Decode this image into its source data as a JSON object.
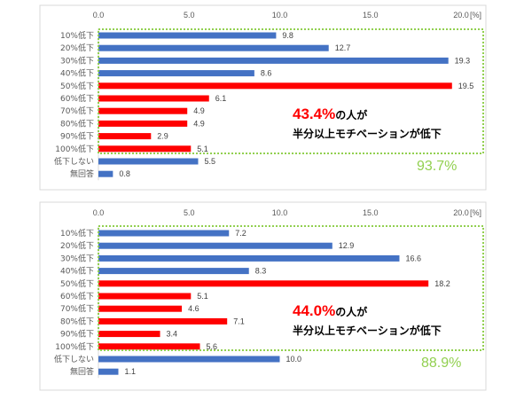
{
  "chart_data": [
    {
      "type": "bar",
      "orientation": "horizontal",
      "categories": [
        "10%低下",
        "20%低下",
        "30%低下",
        "40%低下",
        "50%低下",
        "60%低下",
        "70%低下",
        "80%低下",
        "90%低下",
        "100%低下",
        "低下しない",
        "無回答"
      ],
      "values": [
        9.8,
        12.7,
        19.3,
        8.6,
        19.5,
        6.1,
        4.9,
        4.9,
        2.9,
        5.1,
        5.5,
        0.8
      ],
      "value_labels": [
        "9.8",
        "12.7",
        "19.3",
        "8.6",
        "19.5",
        "6.1",
        "4.9",
        "4.9",
        "2.9",
        "5.1",
        "5.5",
        "0.8"
      ],
      "bar_colors": [
        "#4472c4",
        "#4472c4",
        "#4472c4",
        "#4472c4",
        "#ff0000",
        "#ff0000",
        "#ff0000",
        "#ff0000",
        "#ff0000",
        "#ff0000",
        "#4472c4",
        "#4472c4"
      ],
      "xlim": [
        0,
        20
      ],
      "x_ticks": [
        "0.0",
        "5.0",
        "10.0",
        "15.0",
        "20.0"
      ],
      "x_unit": "[%]",
      "grid": false,
      "annotation": {
        "highlight": "43.4%",
        "line1_rest": "の人が",
        "line2": "半分以上モチベーションが低下"
      },
      "bracket_total": "93.7%",
      "bracket_color": "#92d050"
    },
    {
      "type": "bar",
      "orientation": "horizontal",
      "categories": [
        "10%低下",
        "20%低下",
        "30%低下",
        "40%低下",
        "50%低下",
        "60%低下",
        "70%低下",
        "80%低下",
        "90%低下",
        "100%低下",
        "低下しない",
        "無回答"
      ],
      "values": [
        7.2,
        12.9,
        16.6,
        8.3,
        18.2,
        5.1,
        4.6,
        7.1,
        3.4,
        5.6,
        10.0,
        1.1
      ],
      "value_labels": [
        "7.2",
        "12.9",
        "16.6",
        "8.3",
        "18.2",
        "5.1",
        "4.6",
        "7.1",
        "3.4",
        "5.6",
        "10.0",
        "1.1"
      ],
      "bar_colors": [
        "#4472c4",
        "#4472c4",
        "#4472c4",
        "#4472c4",
        "#ff0000",
        "#ff0000",
        "#ff0000",
        "#ff0000",
        "#ff0000",
        "#ff0000",
        "#4472c4",
        "#4472c4"
      ],
      "xlim": [
        0,
        20
      ],
      "x_ticks": [
        "0.0",
        "5.0",
        "10.0",
        "15.0",
        "20.0"
      ],
      "x_unit": "[%]",
      "grid": false,
      "annotation": {
        "highlight": "44.0%",
        "line1_rest": "の人が",
        "line2": "半分以上モチベーションが低下"
      },
      "bracket_total": "88.9%",
      "bracket_color": "#92d050"
    }
  ]
}
